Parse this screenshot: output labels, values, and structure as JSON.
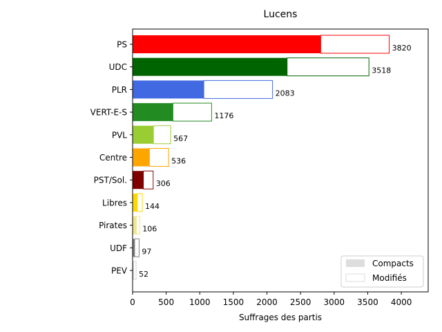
{
  "chart_data": {
    "type": "bar",
    "orientation": "horizontal",
    "stacked": true,
    "title": "Lucens",
    "xlabel": "Suffrages des partis",
    "ylabel": "",
    "xlim": [
      0,
      4400
    ],
    "xticks": [
      0,
      500,
      1000,
      1500,
      2000,
      2500,
      3000,
      3500,
      4000
    ],
    "categories": [
      "PS",
      "UDC",
      "PLR",
      "VERT-E-S",
      "PVL",
      "Centre",
      "PST/Sol.",
      "Libres",
      "Pirates",
      "UDF",
      "PEV"
    ],
    "colors": [
      "#ff0000",
      "#006400",
      "#4169e1",
      "#228b22",
      "#9acd32",
      "#ffa500",
      "#800000",
      "#ffd700",
      "#f0e68c",
      "#808080",
      "#d3d3d3"
    ],
    "series": [
      {
        "name": "Compacts",
        "values": [
          2800,
          2300,
          1060,
          600,
          310,
          250,
          160,
          70,
          55,
          30,
          15
        ]
      },
      {
        "name": "Modifiés",
        "values": [
          1020,
          1218,
          1023,
          576,
          257,
          286,
          146,
          74,
          51,
          67,
          37
        ]
      }
    ],
    "totals": [
      3820,
      3518,
      2083,
      1176,
      567,
      536,
      306,
      144,
      106,
      97,
      52
    ],
    "legend": {
      "position": "lower-right",
      "compacts_color": "#dddddd",
      "modifies_color": "#ffffff"
    }
  }
}
